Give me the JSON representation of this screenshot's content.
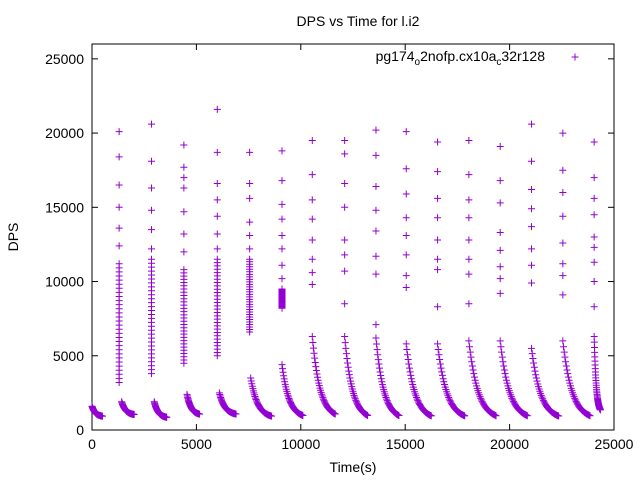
{
  "chart_data": {
    "type": "scatter",
    "title": "DPS vs Time for l.i2",
    "xlabel": "Time(s)",
    "ylabel": "DPS",
    "xlim": [
      0,
      25000
    ],
    "ylim": [
      0,
      26000
    ],
    "xticks": [
      0,
      5000,
      10000,
      15000,
      20000,
      25000
    ],
    "yticks": [
      0,
      5000,
      10000,
      15000,
      20000,
      25000
    ],
    "grid": false,
    "legend_position": "top-right",
    "marker": "+",
    "series": [
      {
        "name": "pg174_o2nofp.cx10a_c32r128",
        "color": "#9400d3",
        "clusters": [
          {
            "t": 0,
            "dur": 500,
            "start": 1600,
            "end": 900
          },
          {
            "t": 1300,
            "dur": 0,
            "start": 11200,
            "end": 3200,
            "outliers": [
              20100,
              18400,
              16500,
              15000,
              13600,
              12400
            ]
          },
          {
            "t": 1420,
            "dur": 600,
            "start": 1900,
            "end": 1000
          },
          {
            "t": 2850,
            "dur": 0,
            "start": 11500,
            "end": 3800,
            "outliers": [
              20600,
              18100,
              16300,
              14800,
              13500,
              12200
            ]
          },
          {
            "t": 2980,
            "dur": 600,
            "start": 1900,
            "end": 800
          },
          {
            "t": 4400,
            "dur": 0,
            "start": 10800,
            "end": 4500,
            "outliers": [
              19200,
              17700,
              17000,
              16300,
              14700,
              13200,
              12000
            ]
          },
          {
            "t": 4550,
            "dur": 600,
            "start": 2400,
            "end": 1000
          },
          {
            "t": 6000,
            "dur": 0,
            "start": 11500,
            "end": 5000,
            "outliers": [
              21600,
              18700,
              16600,
              15500,
              14400,
              13200,
              12200
            ]
          },
          {
            "t": 6100,
            "dur": 800,
            "start": 2500,
            "end": 1000
          },
          {
            "t": 7550,
            "dur": 0,
            "start": 11500,
            "end": 6600,
            "outliers": [
              18700,
              16600,
              15600,
              14000,
              13100,
              12200
            ]
          },
          {
            "t": 7600,
            "dur": 1000,
            "start": 3500,
            "end": 800
          },
          {
            "t": 9100,
            "dur": 0,
            "start": 9500,
            "end": 8200,
            "outliers": [
              18800,
              16800,
              15200,
              14200,
              13100,
              12200,
              11100,
              10200
            ]
          },
          {
            "t": 9100,
            "dur": 1000,
            "start": 4400,
            "end": 800
          },
          {
            "t": 10550,
            "dur": 1100,
            "start": 6300,
            "end": 800,
            "outliers": [
              19500,
              17200,
              15500,
              14200,
              12800,
              11500,
              10600,
              9800
            ]
          },
          {
            "t": 12100,
            "dur": 1100,
            "start": 6300,
            "end": 700,
            "outliers": [
              19500,
              18600,
              16600,
              15000,
              12800,
              11800,
              10700,
              8500
            ]
          },
          {
            "t": 13600,
            "dur": 1100,
            "start": 6200,
            "end": 700,
            "outliers": [
              20200,
              18500,
              16400,
              14800,
              13400,
              11700,
              10500,
              7100
            ]
          },
          {
            "t": 15050,
            "dur": 1200,
            "start": 5800,
            "end": 700,
            "outliers": [
              20100,
              17600,
              15900,
              14300,
              13100,
              11800,
              10400,
              9600
            ]
          },
          {
            "t": 16550,
            "dur": 1300,
            "start": 5800,
            "end": 700,
            "outliers": [
              19400,
              17400,
              15600,
              14300,
              12800,
              11500,
              10800,
              8300
            ]
          },
          {
            "t": 18050,
            "dur": 1300,
            "start": 6000,
            "end": 700,
            "outliers": [
              19500,
              17200,
              15500,
              14300,
              12800,
              11500,
              10500,
              8500
            ]
          },
          {
            "t": 19550,
            "dur": 1300,
            "start": 6000,
            "end": 700,
            "outliers": [
              19100,
              16800,
              15300,
              13300,
              12100,
              11000,
              10200,
              9200
            ]
          },
          {
            "t": 21050,
            "dur": 1300,
            "start": 5500,
            "end": 700,
            "outliers": [
              20600,
              18100,
              16200,
              14900,
              13700,
              12200,
              11100,
              9900
            ]
          },
          {
            "t": 22550,
            "dur": 1300,
            "start": 6000,
            "end": 700,
            "outliers": [
              20000,
              17500,
              16000,
              14400,
              12600,
              11200,
              10400,
              9100
            ]
          },
          {
            "t": 24050,
            "dur": 300,
            "start": 6300,
            "end": 1100,
            "outliers": [
              19400,
              17000,
              15600,
              14500,
              13000,
              12300,
              11300,
              10000,
              8300
            ]
          }
        ]
      }
    ]
  }
}
